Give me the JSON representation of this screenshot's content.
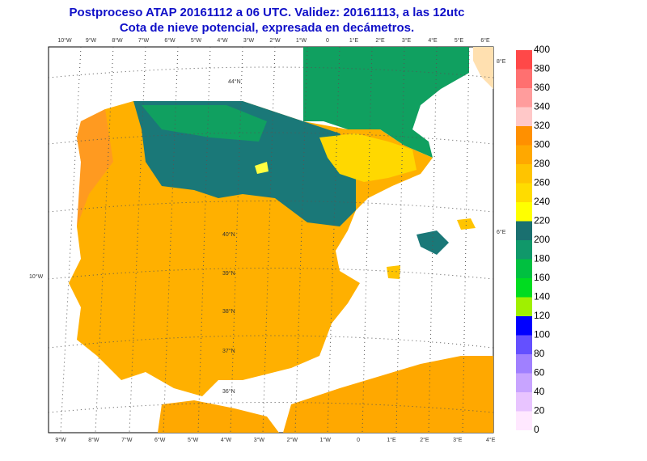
{
  "header": {
    "title": "Postproceso ATAP 20161112 a 06 UTC. Validez: 20161113, a las 12utc",
    "subtitle": "Cota de nieve potencial, expresada en decámetros."
  },
  "map": {
    "lon_labels_top": [
      "10°W",
      "9°W",
      "8°W",
      "7°W",
      "6°W",
      "5°W",
      "4°W",
      "3°W",
      "2°W",
      "1°W",
      "0",
      "1°E",
      "2°E",
      "3°E",
      "4°E",
      "5°E",
      "6°E"
    ],
    "lon_labels_bottom": [
      "9°W",
      "8°W",
      "7°W",
      "6°W",
      "5°W",
      "4°W",
      "3°W",
      "2°W",
      "1°W",
      "0",
      "1°E",
      "2°E",
      "3°E",
      "4°E"
    ],
    "inner_labels": [
      "44°N",
      "40°N",
      "39°N",
      "38°N",
      "37°N",
      "36°N",
      "10°W",
      "8°E",
      "6°E"
    ]
  },
  "legend": {
    "levels": [
      0,
      20,
      40,
      60,
      80,
      100,
      120,
      140,
      160,
      180,
      200,
      220,
      240,
      260,
      280,
      300,
      320,
      340,
      360,
      380,
      400
    ],
    "colors": [
      "#ffe8ff",
      "#e8c4ff",
      "#c8a4ff",
      "#a080ff",
      "#6450ff",
      "#0000ff",
      "#a0f000",
      "#00dc20",
      "#00c040",
      "#10986a",
      "#1a7070",
      "#ffff00",
      "#ffdc00",
      "#ffc400",
      "#ffa800",
      "#ff9000",
      "#ffc8c8",
      "#ff9c9c",
      "#ff7070",
      "#ff4848",
      "#ff2020"
    ]
  }
}
